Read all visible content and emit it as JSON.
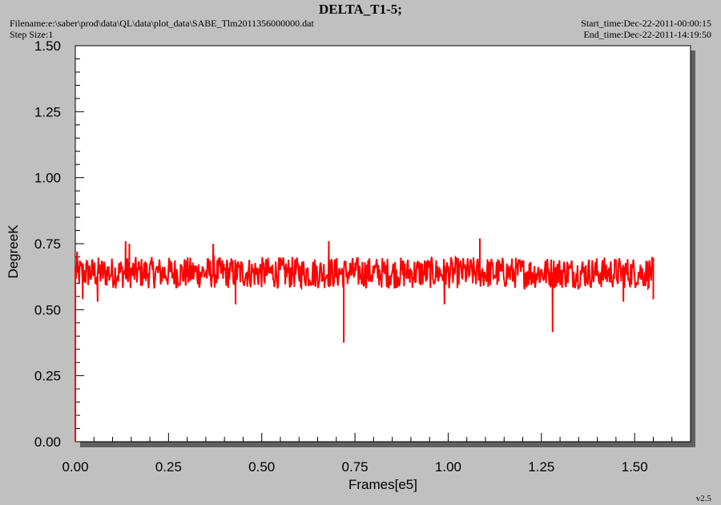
{
  "header": {
    "title": "DELTA_T1-5;",
    "filename": "Filename:e:\\saber\\prod\\data\\QL\\data\\plot_data\\SABE_Tlm2011356000000.dat",
    "step_size": "Step Size:1",
    "start_time": "Start_time:Dec-22-2011-00:00:15",
    "end_time": "End_time:Dec-22-2011-14:19:50",
    "version": "v2.5"
  },
  "colors": {
    "background": "#c0c0c0",
    "plot_area": "#ffffff",
    "series": "#ff0000",
    "shadow": "#606060"
  },
  "chart_data": {
    "type": "line",
    "title": "DELTA_T1-5;",
    "xlabel": "Frames[e5]",
    "ylabel": "DegreeK",
    "xlim": [
      0,
      1.65
    ],
    "ylim": [
      0,
      1.5
    ],
    "xticks": [
      "0.00",
      "0.25",
      "0.50",
      "0.75",
      "1.00",
      "1.25",
      "1.50"
    ],
    "yticks": [
      "0.00",
      "0.25",
      "0.50",
      "0.75",
      "1.00",
      "1.25",
      "1.50"
    ],
    "grid": false,
    "series": [
      {
        "x_range": [
          0,
          1.55
        ],
        "baseline": 0.64,
        "noise_band": [
          0.58,
          0.7
        ],
        "start_value": 0.0,
        "spikes": [
          {
            "x": 0.005,
            "y": 0.72
          },
          {
            "x": 0.02,
            "y": 0.54
          },
          {
            "x": 0.06,
            "y": 0.53
          },
          {
            "x": 0.135,
            "y": 0.76
          },
          {
            "x": 0.145,
            "y": 0.75
          },
          {
            "x": 0.37,
            "y": 0.75
          },
          {
            "x": 0.43,
            "y": 0.52
          },
          {
            "x": 0.68,
            "y": 0.76
          },
          {
            "x": 0.72,
            "y": 0.375
          },
          {
            "x": 0.99,
            "y": 0.52
          },
          {
            "x": 1.085,
            "y": 0.77
          },
          {
            "x": 1.28,
            "y": 0.415
          },
          {
            "x": 1.47,
            "y": 0.53
          },
          {
            "x": 1.55,
            "y": 0.54
          }
        ]
      }
    ]
  }
}
